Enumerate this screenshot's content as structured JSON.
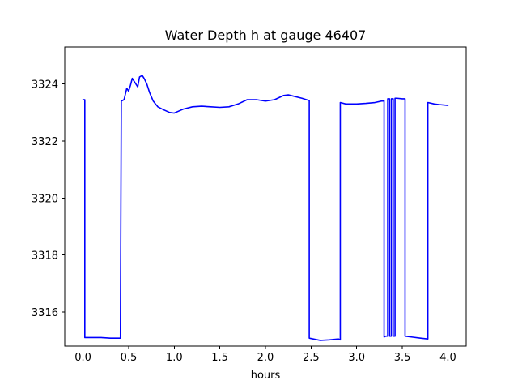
{
  "chart_data": {
    "type": "line",
    "title": "Water Depth h at gauge 46407",
    "xlabel": "hours",
    "ylabel": "",
    "xlim": [
      -0.2,
      4.2
    ],
    "ylim": [
      3314.8,
      3325.3
    ],
    "xticks": [
      0.0,
      0.5,
      1.0,
      1.5,
      2.0,
      2.5,
      3.0,
      3.5,
      4.0
    ],
    "xtick_labels": [
      "0.0",
      "0.5",
      "1.0",
      "1.5",
      "2.0",
      "2.5",
      "3.0",
      "3.5",
      "4.0"
    ],
    "yticks": [
      3316,
      3318,
      3320,
      3322,
      3324
    ],
    "ytick_labels": [
      "3316",
      "3318",
      "3320",
      "3322",
      "3324"
    ],
    "grid": false,
    "legend": "none",
    "series": [
      {
        "color": "#0000ff",
        "x": [
          0.0,
          0.02,
          0.02,
          0.1,
          0.2,
          0.3,
          0.41,
          0.42,
          0.45,
          0.48,
          0.5,
          0.52,
          0.54,
          0.57,
          0.6,
          0.62,
          0.65,
          0.67,
          0.7,
          0.73,
          0.77,
          0.82,
          0.88,
          0.95,
          1.0,
          1.05,
          1.1,
          1.2,
          1.3,
          1.4,
          1.5,
          1.6,
          1.7,
          1.8,
          1.9,
          2.0,
          2.1,
          2.2,
          2.25,
          2.3,
          2.4,
          2.48,
          2.48,
          2.6,
          2.7,
          2.8,
          2.82,
          2.82,
          2.88,
          3.0,
          3.1,
          3.2,
          3.3,
          3.3,
          3.32,
          3.34,
          3.34,
          3.36,
          3.36,
          3.38,
          3.38,
          3.4,
          3.4,
          3.42,
          3.42,
          3.44,
          3.44,
          3.5,
          3.53,
          3.53,
          3.6,
          3.7,
          3.78,
          3.78,
          3.85,
          3.9,
          4.0
        ],
        "y": [
          3323.45,
          3323.45,
          3315.1,
          3315.1,
          3315.1,
          3315.08,
          3315.08,
          3323.4,
          3323.45,
          3323.85,
          3323.75,
          3323.95,
          3324.2,
          3324.05,
          3323.9,
          3324.25,
          3324.3,
          3324.2,
          3324.0,
          3323.7,
          3323.4,
          3323.2,
          3323.1,
          3323.0,
          3322.98,
          3323.05,
          3323.12,
          3323.2,
          3323.22,
          3323.2,
          3323.18,
          3323.2,
          3323.3,
          3323.45,
          3323.45,
          3323.4,
          3323.45,
          3323.6,
          3323.62,
          3323.58,
          3323.5,
          3323.42,
          3315.08,
          3315.0,
          3315.02,
          3315.05,
          3315.02,
          3323.35,
          3323.3,
          3323.3,
          3323.32,
          3323.35,
          3323.42,
          3315.12,
          3315.15,
          3315.15,
          3323.48,
          3323.48,
          3315.15,
          3315.15,
          3323.48,
          3323.48,
          3315.15,
          3315.15,
          3323.5,
          3323.5,
          3323.5,
          3323.48,
          3323.48,
          3315.15,
          3315.12,
          3315.08,
          3315.05,
          3323.35,
          3323.3,
          3323.28,
          3323.25
        ]
      }
    ]
  }
}
